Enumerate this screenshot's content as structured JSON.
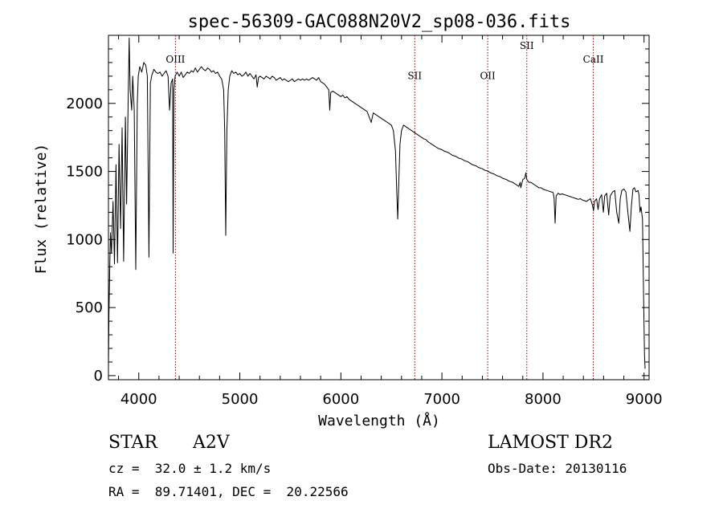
{
  "chart_data": {
    "type": "line",
    "title": "spec-56309-GAC088N20V2_sp08-036.fits",
    "xlabel": "Wavelength (Å)",
    "ylabel": "Flux (relative)",
    "xlim": [
      3700,
      9050
    ],
    "ylim": [
      -30,
      2500
    ],
    "xticks": [
      4000,
      5000,
      6000,
      7000,
      8000,
      9000
    ],
    "yticks": [
      0,
      500,
      1000,
      1500,
      2000
    ],
    "grid": false,
    "series": [
      {
        "color": "#000000",
        "points": [
          [
            3700,
            50
          ],
          [
            3705,
            450
          ],
          [
            3712,
            750
          ],
          [
            3720,
            1050
          ],
          [
            3730,
            900
          ],
          [
            3745,
            1280
          ],
          [
            3760,
            820
          ],
          [
            3775,
            1550
          ],
          [
            3790,
            830
          ],
          [
            3805,
            1700
          ],
          [
            3820,
            1080
          ],
          [
            3835,
            1820
          ],
          [
            3850,
            840
          ],
          [
            3868,
            1900
          ],
          [
            3880,
            1260
          ],
          [
            3895,
            2000
          ],
          [
            3905,
            2480
          ],
          [
            3915,
            2100
          ],
          [
            3930,
            1950
          ],
          [
            3940,
            2200
          ],
          [
            3955,
            1950
          ],
          [
            3970,
            780
          ],
          [
            3985,
            2000
          ],
          [
            3995,
            2200
          ],
          [
            4010,
            2270
          ],
          [
            4030,
            2230
          ],
          [
            4050,
            2300
          ],
          [
            4070,
            2280
          ],
          [
            4085,
            2200
          ],
          [
            4101,
            870
          ],
          [
            4115,
            2150
          ],
          [
            4130,
            2210
          ],
          [
            4150,
            2250
          ],
          [
            4170,
            2230
          ],
          [
            4190,
            2220
          ],
          [
            4210,
            2230
          ],
          [
            4230,
            2200
          ],
          [
            4250,
            2220
          ],
          [
            4270,
            2240
          ],
          [
            4290,
            2200
          ],
          [
            4305,
            1950
          ],
          [
            4320,
            2150
          ],
          [
            4335,
            2180
          ],
          [
            4340,
            900
          ],
          [
            4348,
            2100
          ],
          [
            4360,
            2200
          ],
          [
            4380,
            2230
          ],
          [
            4400,
            2200
          ],
          [
            4420,
            2230
          ],
          [
            4440,
            2190
          ],
          [
            4460,
            2210
          ],
          [
            4480,
            2230
          ],
          [
            4500,
            2220
          ],
          [
            4520,
            2240
          ],
          [
            4540,
            2230
          ],
          [
            4560,
            2260
          ],
          [
            4580,
            2230
          ],
          [
            4600,
            2250
          ],
          [
            4620,
            2270
          ],
          [
            4640,
            2250
          ],
          [
            4660,
            2240
          ],
          [
            4680,
            2260
          ],
          [
            4700,
            2250
          ],
          [
            4720,
            2230
          ],
          [
            4740,
            2240
          ],
          [
            4760,
            2220
          ],
          [
            4780,
            2230
          ],
          [
            4800,
            2200
          ],
          [
            4820,
            2180
          ],
          [
            4840,
            2100
          ],
          [
            4850,
            1800
          ],
          [
            4861,
            1030
          ],
          [
            4872,
            1800
          ],
          [
            4885,
            2100
          ],
          [
            4900,
            2200
          ],
          [
            4920,
            2240
          ],
          [
            4940,
            2220
          ],
          [
            4960,
            2230
          ],
          [
            4980,
            2210
          ],
          [
            5000,
            2220
          ],
          [
            5020,
            2200
          ],
          [
            5040,
            2210
          ],
          [
            5060,
            2230
          ],
          [
            5080,
            2200
          ],
          [
            5100,
            2220
          ],
          [
            5120,
            2200
          ],
          [
            5140,
            2180
          ],
          [
            5160,
            2210
          ],
          [
            5172,
            2120
          ],
          [
            5185,
            2190
          ],
          [
            5200,
            2200
          ],
          [
            5220,
            2190
          ],
          [
            5240,
            2180
          ],
          [
            5260,
            2200
          ],
          [
            5280,
            2190
          ],
          [
            5300,
            2180
          ],
          [
            5320,
            2200
          ],
          [
            5340,
            2190
          ],
          [
            5360,
            2170
          ],
          [
            5380,
            2180
          ],
          [
            5400,
            2190
          ],
          [
            5420,
            2170
          ],
          [
            5440,
            2180
          ],
          [
            5460,
            2170
          ],
          [
            5480,
            2160
          ],
          [
            5500,
            2170
          ],
          [
            5520,
            2180
          ],
          [
            5540,
            2160
          ],
          [
            5560,
            2170
          ],
          [
            5580,
            2180
          ],
          [
            5600,
            2170
          ],
          [
            5620,
            2180
          ],
          [
            5640,
            2170
          ],
          [
            5660,
            2180
          ],
          [
            5680,
            2170
          ],
          [
            5700,
            2180
          ],
          [
            5720,
            2190
          ],
          [
            5740,
            2180
          ],
          [
            5760,
            2170
          ],
          [
            5780,
            2190
          ],
          [
            5800,
            2160
          ],
          [
            5820,
            2150
          ],
          [
            5840,
            2140
          ],
          [
            5860,
            2120
          ],
          [
            5880,
            2100
          ],
          [
            5890,
            1950
          ],
          [
            5900,
            2080
          ],
          [
            5920,
            2090
          ],
          [
            5940,
            2080
          ],
          [
            5960,
            2070
          ],
          [
            5980,
            2060
          ],
          [
            6000,
            2050
          ],
          [
            6020,
            2060
          ],
          [
            6040,
            2040
          ],
          [
            6060,
            2050
          ],
          [
            6080,
            2030
          ],
          [
            6100,
            2020
          ],
          [
            6120,
            2010
          ],
          [
            6140,
            2000
          ],
          [
            6160,
            1990
          ],
          [
            6180,
            1980
          ],
          [
            6200,
            1970
          ],
          [
            6220,
            1960
          ],
          [
            6240,
            1950
          ],
          [
            6260,
            1940
          ],
          [
            6280,
            1900
          ],
          [
            6300,
            1860
          ],
          [
            6320,
            1930
          ],
          [
            6340,
            1920
          ],
          [
            6360,
            1910
          ],
          [
            6380,
            1900
          ],
          [
            6400,
            1890
          ],
          [
            6420,
            1880
          ],
          [
            6440,
            1870
          ],
          [
            6460,
            1860
          ],
          [
            6480,
            1850
          ],
          [
            6500,
            1840
          ],
          [
            6520,
            1800
          ],
          [
            6540,
            1650
          ],
          [
            6553,
            1350
          ],
          [
            6563,
            1150
          ],
          [
            6572,
            1400
          ],
          [
            6585,
            1700
          ],
          [
            6600,
            1800
          ],
          [
            6620,
            1840
          ],
          [
            6640,
            1830
          ],
          [
            6660,
            1820
          ],
          [
            6680,
            1810
          ],
          [
            6700,
            1800
          ],
          [
            6720,
            1790
          ],
          [
            6740,
            1780
          ],
          [
            6760,
            1770
          ],
          [
            6780,
            1760
          ],
          [
            6800,
            1750
          ],
          [
            6820,
            1740
          ],
          [
            6840,
            1735
          ],
          [
            6860,
            1720
          ],
          [
            6880,
            1710
          ],
          [
            6900,
            1700
          ],
          [
            6920,
            1690
          ],
          [
            6940,
            1680
          ],
          [
            6960,
            1670
          ],
          [
            6980,
            1665
          ],
          [
            7000,
            1660
          ],
          [
            7020,
            1650
          ],
          [
            7040,
            1645
          ],
          [
            7060,
            1640
          ],
          [
            7080,
            1630
          ],
          [
            7100,
            1620
          ],
          [
            7120,
            1615
          ],
          [
            7140,
            1610
          ],
          [
            7160,
            1600
          ],
          [
            7180,
            1595
          ],
          [
            7200,
            1590
          ],
          [
            7220,
            1580
          ],
          [
            7240,
            1575
          ],
          [
            7260,
            1570
          ],
          [
            7280,
            1560
          ],
          [
            7300,
            1550
          ],
          [
            7320,
            1545
          ],
          [
            7340,
            1540
          ],
          [
            7360,
            1530
          ],
          [
            7380,
            1525
          ],
          [
            7400,
            1520
          ],
          [
            7420,
            1510
          ],
          [
            7440,
            1505
          ],
          [
            7460,
            1500
          ],
          [
            7480,
            1490
          ],
          [
            7500,
            1485
          ],
          [
            7520,
            1480
          ],
          [
            7540,
            1470
          ],
          [
            7560,
            1465
          ],
          [
            7580,
            1460
          ],
          [
            7600,
            1450
          ],
          [
            7620,
            1445
          ],
          [
            7640,
            1440
          ],
          [
            7660,
            1430
          ],
          [
            7680,
            1425
          ],
          [
            7700,
            1420
          ],
          [
            7720,
            1410
          ],
          [
            7740,
            1400
          ],
          [
            7760,
            1390
          ],
          [
            7775,
            1420
          ],
          [
            7780,
            1380
          ],
          [
            7800,
            1440
          ],
          [
            7820,
            1450
          ],
          [
            7830,
            1490
          ],
          [
            7840,
            1440
          ],
          [
            7860,
            1420
          ],
          [
            7880,
            1420
          ],
          [
            7900,
            1410
          ],
          [
            7920,
            1400
          ],
          [
            7940,
            1390
          ],
          [
            7960,
            1380
          ],
          [
            7980,
            1380
          ],
          [
            8000,
            1370
          ],
          [
            8020,
            1365
          ],
          [
            8040,
            1360
          ],
          [
            8060,
            1355
          ],
          [
            8080,
            1350
          ],
          [
            8100,
            1345
          ],
          [
            8110,
            1300
          ],
          [
            8120,
            1120
          ],
          [
            8130,
            1320
          ],
          [
            8150,
            1340
          ],
          [
            8170,
            1330
          ],
          [
            8190,
            1335
          ],
          [
            8210,
            1330
          ],
          [
            8230,
            1325
          ],
          [
            8250,
            1320
          ],
          [
            8270,
            1315
          ],
          [
            8290,
            1310
          ],
          [
            8310,
            1305
          ],
          [
            8330,
            1300
          ],
          [
            8350,
            1295
          ],
          [
            8370,
            1300
          ],
          [
            8390,
            1290
          ],
          [
            8410,
            1285
          ],
          [
            8430,
            1280
          ],
          [
            8450,
            1290
          ],
          [
            8470,
            1300
          ],
          [
            8490,
            1250
          ],
          [
            8500,
            1210
          ],
          [
            8510,
            1280
          ],
          [
            8530,
            1300
          ],
          [
            8545,
            1220
          ],
          [
            8560,
            1300
          ],
          [
            8580,
            1330
          ],
          [
            8598,
            1200
          ],
          [
            8610,
            1320
          ],
          [
            8630,
            1340
          ],
          [
            8650,
            1180
          ],
          [
            8665,
            1320
          ],
          [
            8690,
            1350
          ],
          [
            8710,
            1360
          ],
          [
            8730,
            1200
          ],
          [
            8750,
            1120
          ],
          [
            8765,
            1300
          ],
          [
            8780,
            1360
          ],
          [
            8800,
            1370
          ],
          [
            8820,
            1350
          ],
          [
            8840,
            1200
          ],
          [
            8860,
            1060
          ],
          [
            8875,
            1250
          ],
          [
            8890,
            1370
          ],
          [
            8905,
            1380
          ],
          [
            8920,
            1350
          ],
          [
            8940,
            1360
          ],
          [
            8950,
            1330
          ],
          [
            8960,
            1200
          ],
          [
            8970,
            1240
          ],
          [
            8985,
            1150
          ],
          [
            8995,
            600
          ],
          [
            9005,
            150
          ],
          [
            9010,
            50
          ]
        ]
      }
    ],
    "lines": [
      {
        "label": "OIII",
        "x": 4363,
        "label_y": 2300
      },
      {
        "label": "SII",
        "x": 6731,
        "label_y": 2180
      },
      {
        "label": "OII",
        "x": 7453,
        "label_y": 2180
      },
      {
        "label": "SII",
        "x": 7840,
        "label_y": 2400
      },
      {
        "label": "CaII",
        "x": 8498,
        "label_y": 2300
      }
    ],
    "line_color": "#8b0000"
  },
  "info": {
    "object_type": "STAR",
    "spectral_class": "A2V",
    "survey": "LAMOST DR2",
    "redshift": "cz =  32.0 ± 1.2 km/s",
    "obs_date": "Obs-Date: 20130116",
    "coords": "RA =  89.71401, DEC =  20.22566"
  }
}
